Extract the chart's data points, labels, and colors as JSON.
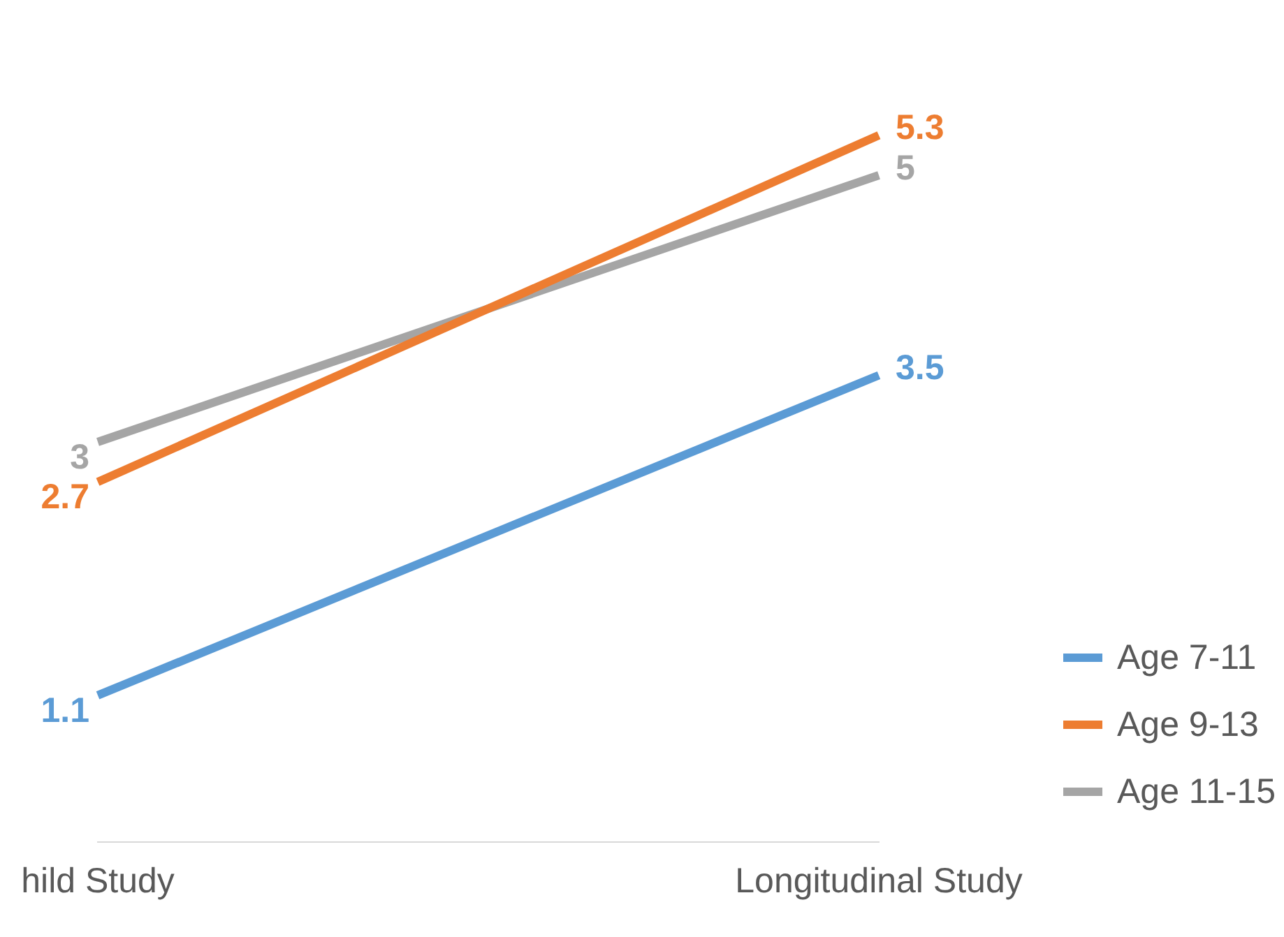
{
  "chart_data": {
    "type": "line",
    "categories": [
      "hild Study",
      "Longitudinal Study"
    ],
    "series": [
      {
        "name": "Age 7-11",
        "color": "#5b9bd5",
        "values": [
          1.1,
          3.5
        ]
      },
      {
        "name": "Age 9-13",
        "color": "#ed7d31",
        "values": [
          2.7,
          5.3
        ]
      },
      {
        "name": "Age 11-15",
        "color": "#a5a5a5",
        "values": [
          3,
          5
        ]
      }
    ],
    "data_labels": true,
    "legend": "bottom right",
    "grid": false,
    "marker": "none",
    "tick_labels": "x"
  }
}
